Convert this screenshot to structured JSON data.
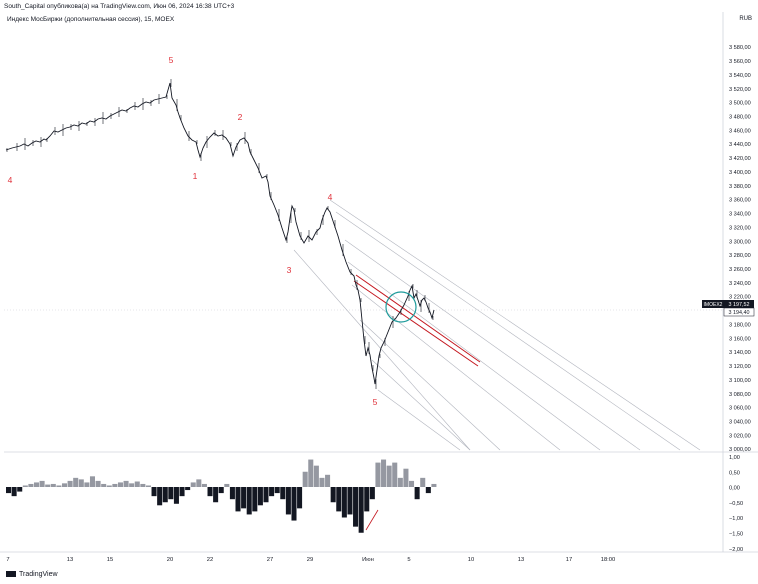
{
  "header": {
    "attribution": "South_Capital опубликова(а) на TradingView.com, Июн 06, 2024 16:38 UTC+3",
    "legend": "Индекс МосБиржи (дополнительная сессия), 15, MOEX",
    "currency": "RUB"
  },
  "footer": {
    "brand": "TradingView"
  },
  "colors": {
    "price_line": "#131722",
    "wave_labels": "#e0313a",
    "channel": "#c4171f",
    "fan_lines": "#b2b5be",
    "circle": "#1e9b9b",
    "osc_positive": "#9598a1",
    "osc_negative": "#131722",
    "badge_bg": "#131722",
    "gridline": "#eef0f3"
  },
  "chart_data": [
    {
      "type": "line",
      "title": "Индекс МосБиржи (дополнительная сессия), 15, MOEX",
      "xlabel": "",
      "ylabel": "",
      "x_ticks": [
        "7",
        "13",
        "15",
        "20",
        "22",
        "27",
        "29",
        "Июн",
        "5",
        "10",
        "13",
        "17",
        "18:00"
      ],
      "y_ticks": [
        "3 580,00",
        "3 560,00",
        "3 540,00",
        "3 520,00",
        "3 500,00",
        "3 480,00",
        "3 460,00",
        "3 440,00",
        "3 420,00",
        "3 400,00",
        "3 380,00",
        "3 360,00",
        "3 340,00",
        "3 320,00",
        "3 300,00",
        "3 280,00",
        "3 260,00",
        "3 240,00",
        "3 220,00",
        "3 200,00",
        "3 180,00",
        "3 160,00",
        "3 140,00",
        "3 120,00",
        "3 100,00",
        "3 080,00",
        "3 060,00",
        "3 040,00",
        "3 020,00",
        "3 000,00"
      ],
      "ylim": [
        3000,
        3590
      ],
      "grid": false,
      "series": [
        {
          "name": "IMOEX2",
          "x": [
            "May 7",
            "May 10",
            "May 13",
            "May 15",
            "May 17",
            "May 20 early",
            "May 20",
            "May 21",
            "May 22",
            "May 23",
            "May 24",
            "May 27",
            "May 28",
            "May 29",
            "May 30",
            "May 31",
            "Jun 3",
            "Jun 3 late",
            "Jun 4",
            "Jun 5",
            "Jun 6"
          ],
          "y": [
            3432,
            3418,
            3455,
            3468,
            3490,
            3525,
            3510,
            3420,
            3445,
            3412,
            3375,
            3280,
            3310,
            3300,
            3340,
            3250,
            3130,
            3095,
            3180,
            3235,
            3197.52
          ]
        }
      ],
      "wave_labels": [
        {
          "text": "4",
          "x": "May 7",
          "y": 3380
        },
        {
          "text": "5",
          "x": "May 20",
          "y": 3545
        },
        {
          "text": "1",
          "x": "May 21",
          "y": 3385
        },
        {
          "text": "2",
          "x": "May 23",
          "y": 3455
        },
        {
          "text": "3",
          "x": "May 28",
          "y": 3260
        },
        {
          "text": "4",
          "x": "May 30",
          "y": 3350
        },
        {
          "text": "5",
          "x": "Jun 3",
          "y": 3075
        }
      ],
      "price_badges": [
        {
          "label": "IMOEX2",
          "value": "3 197,52"
        },
        {
          "value": "3 194,40"
        }
      ]
    },
    {
      "type": "bar",
      "title": "",
      "xlabel": "",
      "ylabel": "",
      "y_ticks": [
        "1,00",
        "0,50",
        "0,00",
        "−0,50",
        "−1,00",
        "−1,50",
        "−2,00"
      ],
      "ylim": [
        -2.1,
        1.1
      ],
      "values": [
        -0.2,
        -0.3,
        -0.15,
        0.05,
        0.1,
        0.15,
        0.2,
        0.08,
        0.1,
        0.05,
        0.12,
        0.2,
        0.3,
        0.25,
        0.15,
        0.35,
        0.2,
        0.1,
        0.05,
        0.1,
        0.15,
        0.2,
        0.12,
        0.18,
        0.1,
        0.05,
        -0.3,
        -0.6,
        -0.5,
        -0.4,
        -0.55,
        -0.3,
        -0.1,
        0.15,
        0.25,
        0.1,
        -0.3,
        -0.5,
        -0.2,
        0.1,
        -0.4,
        -0.8,
        -0.7,
        -0.9,
        -0.8,
        -0.6,
        -0.5,
        -0.3,
        -0.2,
        -0.4,
        -0.9,
        -1.1,
        -0.7,
        0.5,
        0.9,
        0.7,
        0.3,
        0.4,
        -0.5,
        -0.8,
        -1.0,
        -0.9,
        -1.3,
        -1.5,
        -0.8,
        -0.4,
        0.8,
        0.9,
        0.7,
        0.8,
        0.3,
        0.6,
        0.2,
        -0.4,
        0.3,
        -0.2,
        0.1
      ]
    }
  ]
}
